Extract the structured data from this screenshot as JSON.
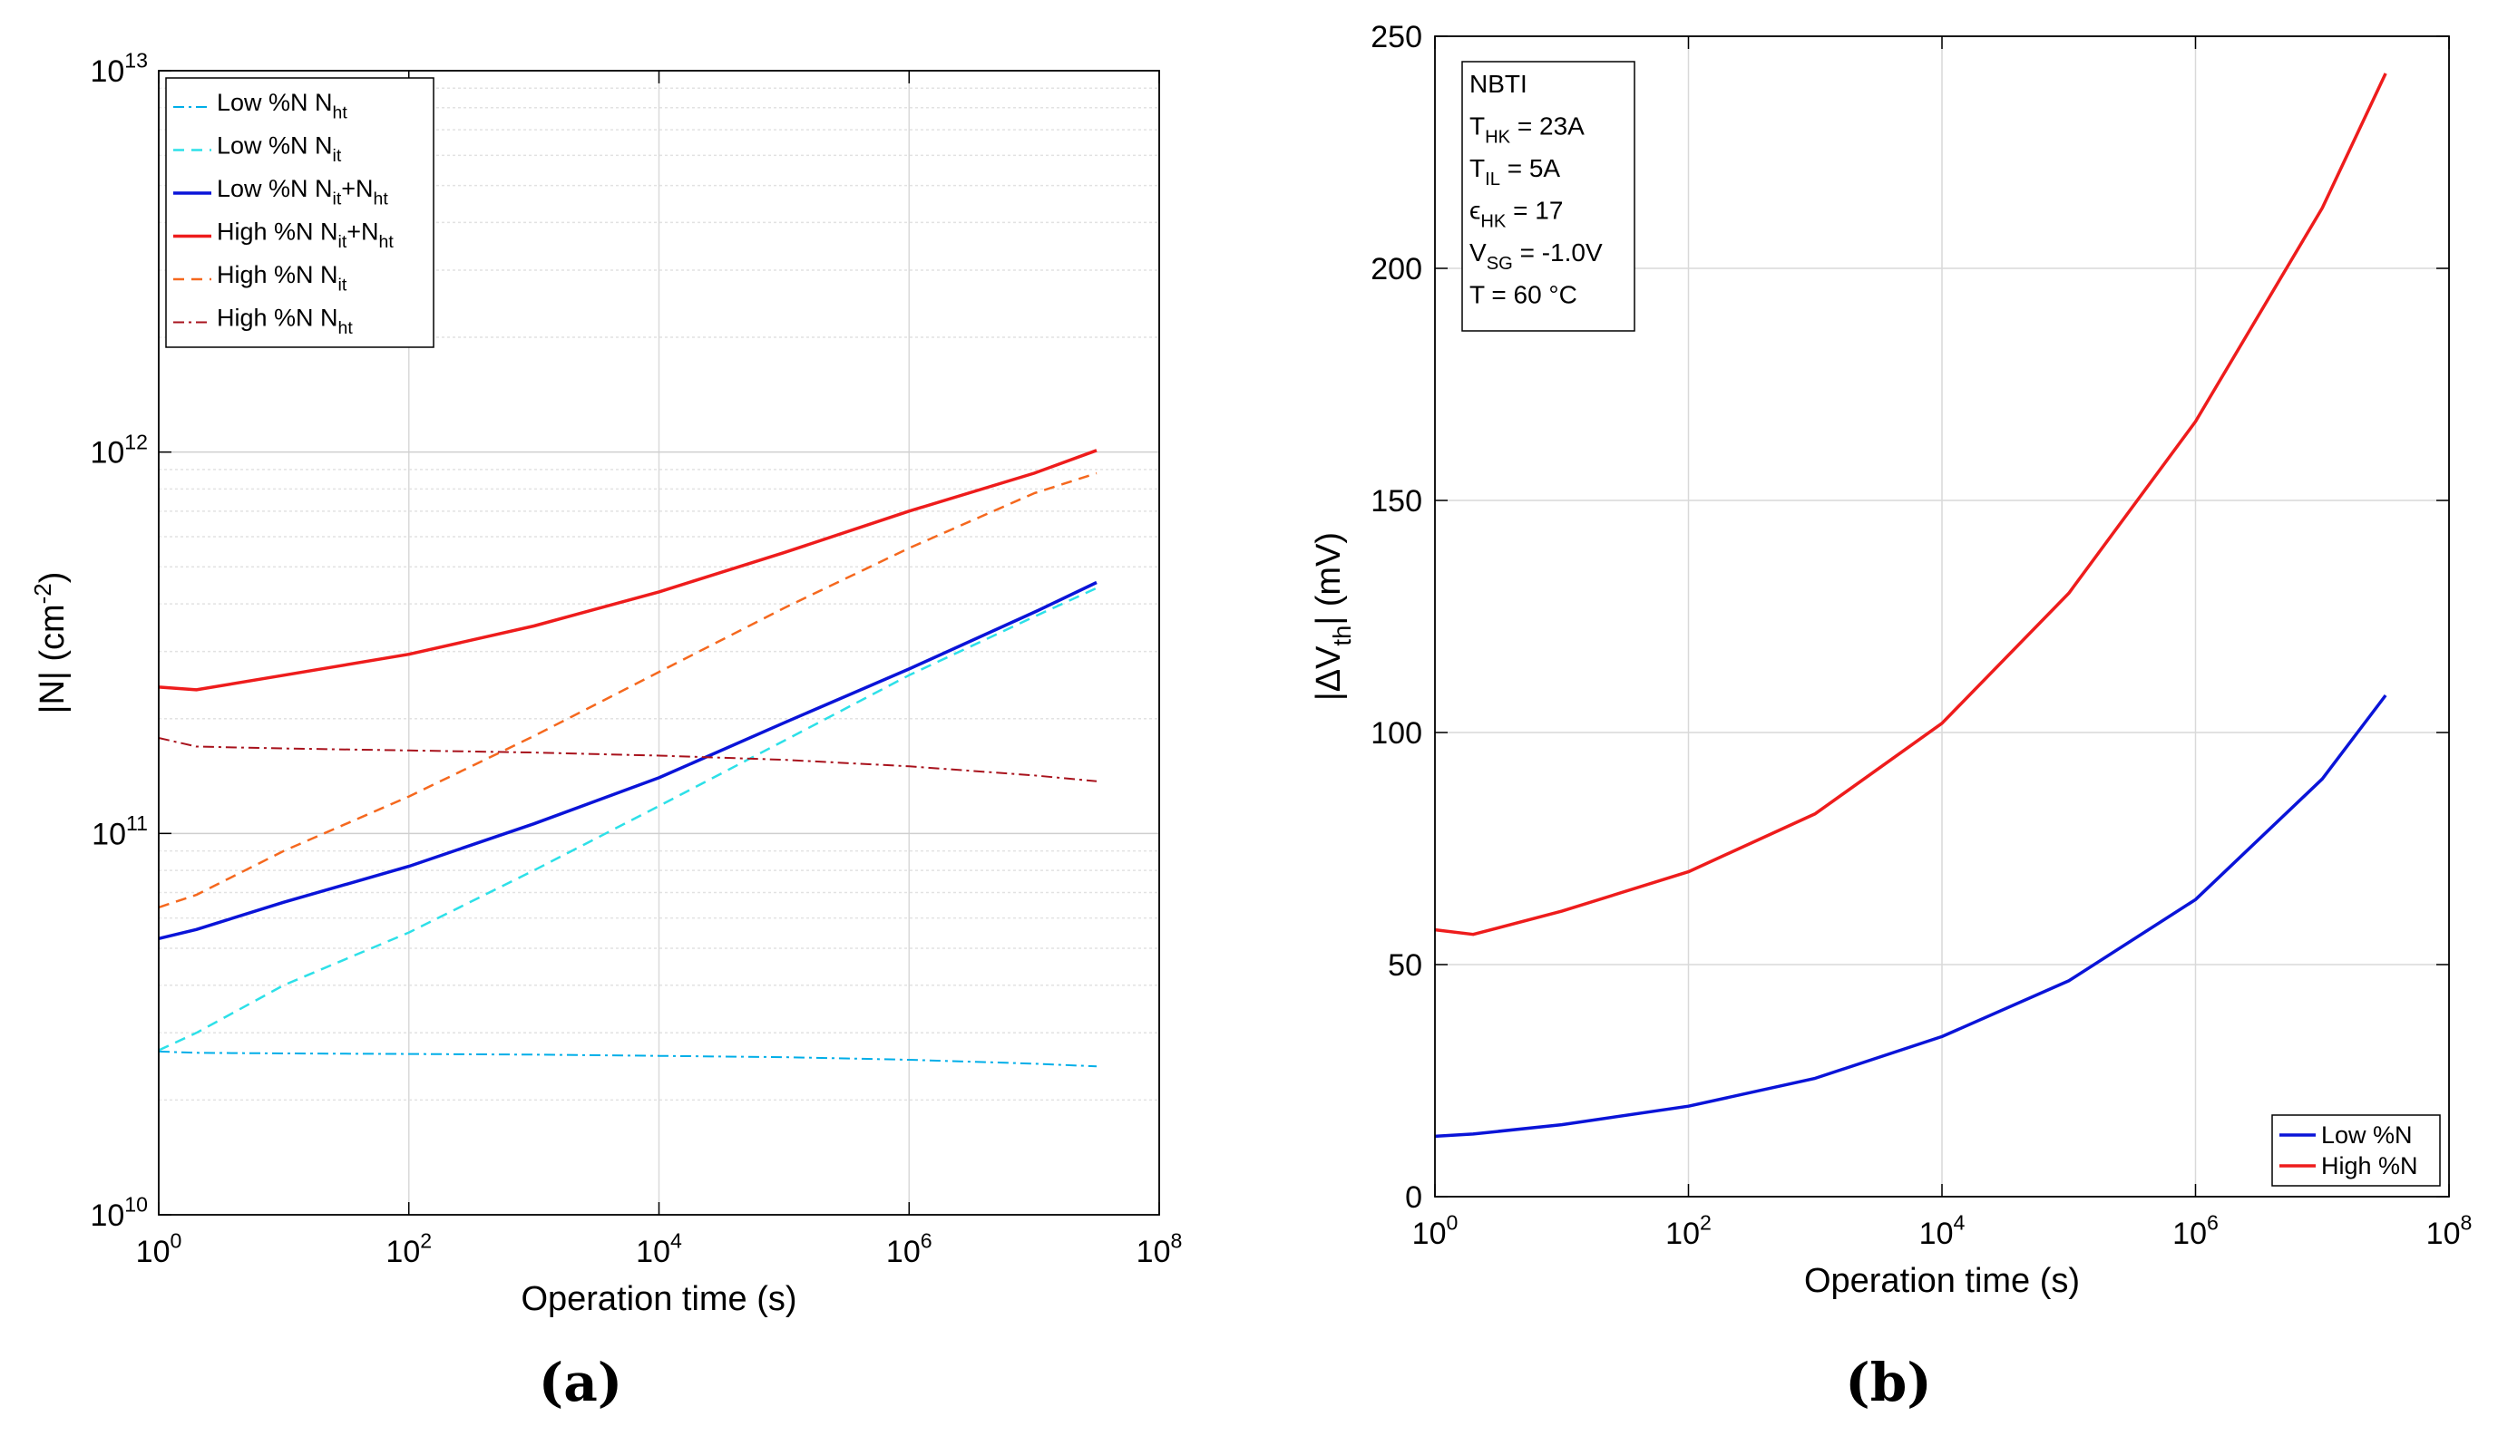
{
  "figure_labels": {
    "a": "(a)",
    "b": "(b)"
  },
  "chart_data": [
    {
      "id": "a",
      "type": "line",
      "xscale": "log",
      "yscale": "log",
      "xlabel": "Operation time (s)",
      "ylabel": "|N| (cm",
      "ylabel_sup": "-2",
      "ylabel_close": ")",
      "xlim": [
        1,
        100000000
      ],
      "ylim": [
        10000000000,
        10000000000000
      ],
      "xticks": [
        {
          "base": "10",
          "exp": "0"
        },
        {
          "base": "10",
          "exp": "2"
        },
        {
          "base": "10",
          "exp": "4"
        },
        {
          "base": "10",
          "exp": "6"
        },
        {
          "base": "10",
          "exp": "8"
        }
      ],
      "yticks": [
        {
          "base": "10",
          "exp": "10"
        },
        {
          "base": "10",
          "exp": "11"
        },
        {
          "base": "10",
          "exp": "12"
        },
        {
          "base": "10",
          "exp": "13"
        }
      ],
      "grid": true,
      "legend": "top-left",
      "series": [
        {
          "name": "Low %N",
          "sub_parts": [
            [
              "N",
              ""
            ],
            [
              "ht",
              "sub"
            ]
          ],
          "color": "#00aee8",
          "dash": "12,5,3,5",
          "width": 2,
          "x": [
            1,
            2,
            10,
            100,
            1000,
            10000,
            100000,
            1000000,
            10000000,
            31600000
          ],
          "y": [
            26800000000,
            26600000000,
            26500000000,
            26400000000,
            26300000000,
            26100000000,
            25900000000,
            25500000000,
            24900000000,
            24500000000
          ]
        },
        {
          "name": "Low %N",
          "sub_parts": [
            [
              "N",
              ""
            ],
            [
              "it",
              "sub"
            ]
          ],
          "color": "#2de0e8",
          "dash": "12,8",
          "width": 2.5,
          "x": [
            1,
            2,
            10,
            100,
            1000,
            10000,
            100000,
            1000000,
            10000000,
            31600000
          ],
          "y": [
            27000000000,
            30000000000,
            40000000000,
            55000000000,
            80000000000,
            118000000000,
            175000000000,
            260000000000,
            370000000000,
            440000000000
          ]
        },
        {
          "name": "Low %N",
          "sub_parts": [
            [
              "N",
              ""
            ],
            [
              "it",
              "sub"
            ],
            [
              "+N",
              ""
            ],
            [
              "ht",
              "sub"
            ]
          ],
          "color": "#0a14d8",
          "dash": "",
          "width": 3.5,
          "x": [
            1,
            2,
            10,
            100,
            1000,
            10000,
            100000,
            1000000,
            10000000,
            31600000
          ],
          "y": [
            53000000000,
            56000000000,
            66000000000,
            82000000000,
            106000000000,
            140000000000,
            195000000000,
            270000000000,
            380000000000,
            455000000000
          ]
        },
        {
          "name": "High %N",
          "sub_parts": [
            [
              "N",
              ""
            ],
            [
              "it",
              "sub"
            ],
            [
              "+N",
              ""
            ],
            [
              "ht",
              "sub"
            ]
          ],
          "color": "#ee1c1c",
          "dash": "",
          "width": 3.5,
          "x": [
            1,
            2,
            10,
            100,
            1000,
            10000,
            100000,
            1000000,
            10000000,
            31600000
          ],
          "y": [
            242000000000,
            238000000000,
            260000000000,
            295000000000,
            350000000000,
            430000000000,
            545000000000,
            700000000000,
            880000000000,
            1010000000000
          ]
        },
        {
          "name": "High %N",
          "sub_parts": [
            [
              "N",
              ""
            ],
            [
              "it",
              "sub"
            ]
          ],
          "color": "#f5681e",
          "dash": "12,8",
          "width": 2.5,
          "x": [
            1,
            2,
            10,
            100,
            1000,
            10000,
            100000,
            1000000,
            10000000,
            31600000
          ],
          "y": [
            64000000000,
            69000000000,
            90000000000,
            125000000000,
            180000000000,
            265000000000,
            390000000000,
            560000000000,
            780000000000,
            880000000000
          ]
        },
        {
          "name": "High %N",
          "sub_parts": [
            [
              "N",
              ""
            ],
            [
              "ht",
              "sub"
            ]
          ],
          "color": "#a8121c",
          "dash": "12,5,3,5",
          "width": 2,
          "x": [
            1,
            2,
            10,
            100,
            1000,
            10000,
            100000,
            1000000,
            10000000,
            31600000
          ],
          "y": [
            178000000000,
            169000000000,
            167000000000,
            165000000000,
            163000000000,
            160000000000,
            156000000000,
            150000000000,
            142000000000,
            137000000000
          ]
        }
      ]
    },
    {
      "id": "b",
      "type": "line",
      "xscale": "log",
      "yscale": "linear",
      "xlabel": "Operation time (s)",
      "ylabel": "|ΔV",
      "ylabel_sub": "th",
      "ylabel_close": "| (mV)",
      "xlim": [
        1,
        100000000
      ],
      "ylim": [
        0,
        250
      ],
      "xticks": [
        {
          "base": "10",
          "exp": "0"
        },
        {
          "base": "10",
          "exp": "2"
        },
        {
          "base": "10",
          "exp": "4"
        },
        {
          "base": "10",
          "exp": "6"
        },
        {
          "base": "10",
          "exp": "8"
        }
      ],
      "yticks": [
        "0",
        "50",
        "100",
        "150",
        "200",
        "250"
      ],
      "grid": true,
      "legend": "bottom-right",
      "annotation": [
        [
          [
            "NBTI",
            ""
          ]
        ],
        [
          [
            "T",
            ""
          ],
          [
            "HK",
            "sub"
          ],
          [
            " = 23A",
            ""
          ]
        ],
        [
          [
            "T",
            ""
          ],
          [
            "IL",
            "sub"
          ],
          [
            " = 5A",
            ""
          ]
        ],
        [
          [
            "ϵ",
            ""
          ],
          [
            "HK",
            "sub"
          ],
          [
            " = 17",
            ""
          ]
        ],
        [
          [
            "V",
            ""
          ],
          [
            "SG",
            "sub"
          ],
          [
            " = -1.0V",
            ""
          ]
        ],
        [
          [
            "T = 60 °C",
            ""
          ]
        ]
      ],
      "series": [
        {
          "name": "Low %N",
          "color": "#0a14d8",
          "dash": "",
          "width": 3.5,
          "x": [
            1,
            2,
            10,
            100,
            1000,
            10000,
            100000,
            1000000,
            10000000,
            31600000
          ],
          "y": [
            13,
            13.5,
            15.5,
            19.5,
            25.5,
            34.5,
            46.5,
            64,
            90,
            108
          ]
        },
        {
          "name": "High %N",
          "color": "#ee1c1c",
          "dash": "",
          "width": 3.5,
          "x": [
            1,
            2,
            10,
            100,
            1000,
            10000,
            100000,
            1000000,
            10000000,
            31600000
          ],
          "y": [
            57.5,
            56.5,
            61.5,
            70,
            82.5,
            102,
            130,
            167,
            213,
            242
          ]
        }
      ]
    }
  ]
}
